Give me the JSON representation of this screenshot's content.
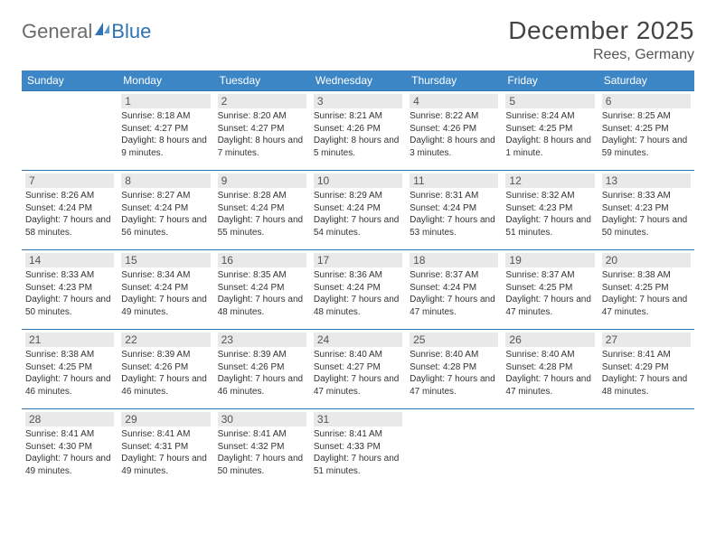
{
  "logo": {
    "text1": "General",
    "text2": "Blue"
  },
  "title": "December 2025",
  "location": "Rees, Germany",
  "colors": {
    "header_bg": "#3d86c6",
    "border": "#2f73b5",
    "daynum_bg": "#e9e9e9",
    "text": "#333333",
    "logo_gray": "#6b6b6b",
    "logo_blue": "#2f73b5"
  },
  "weekdays": [
    "Sunday",
    "Monday",
    "Tuesday",
    "Wednesday",
    "Thursday",
    "Friday",
    "Saturday"
  ],
  "days": {
    "1": {
      "sunrise": "8:18 AM",
      "sunset": "4:27 PM",
      "daylight": "8 hours and 9 minutes."
    },
    "2": {
      "sunrise": "8:20 AM",
      "sunset": "4:27 PM",
      "daylight": "8 hours and 7 minutes."
    },
    "3": {
      "sunrise": "8:21 AM",
      "sunset": "4:26 PM",
      "daylight": "8 hours and 5 minutes."
    },
    "4": {
      "sunrise": "8:22 AM",
      "sunset": "4:26 PM",
      "daylight": "8 hours and 3 minutes."
    },
    "5": {
      "sunrise": "8:24 AM",
      "sunset": "4:25 PM",
      "daylight": "8 hours and 1 minute."
    },
    "6": {
      "sunrise": "8:25 AM",
      "sunset": "4:25 PM",
      "daylight": "7 hours and 59 minutes."
    },
    "7": {
      "sunrise": "8:26 AM",
      "sunset": "4:24 PM",
      "daylight": "7 hours and 58 minutes."
    },
    "8": {
      "sunrise": "8:27 AM",
      "sunset": "4:24 PM",
      "daylight": "7 hours and 56 minutes."
    },
    "9": {
      "sunrise": "8:28 AM",
      "sunset": "4:24 PM",
      "daylight": "7 hours and 55 minutes."
    },
    "10": {
      "sunrise": "8:29 AM",
      "sunset": "4:24 PM",
      "daylight": "7 hours and 54 minutes."
    },
    "11": {
      "sunrise": "8:31 AM",
      "sunset": "4:24 PM",
      "daylight": "7 hours and 53 minutes."
    },
    "12": {
      "sunrise": "8:32 AM",
      "sunset": "4:23 PM",
      "daylight": "7 hours and 51 minutes."
    },
    "13": {
      "sunrise": "8:33 AM",
      "sunset": "4:23 PM",
      "daylight": "7 hours and 50 minutes."
    },
    "14": {
      "sunrise": "8:33 AM",
      "sunset": "4:23 PM",
      "daylight": "7 hours and 50 minutes."
    },
    "15": {
      "sunrise": "8:34 AM",
      "sunset": "4:24 PM",
      "daylight": "7 hours and 49 minutes."
    },
    "16": {
      "sunrise": "8:35 AM",
      "sunset": "4:24 PM",
      "daylight": "7 hours and 48 minutes."
    },
    "17": {
      "sunrise": "8:36 AM",
      "sunset": "4:24 PM",
      "daylight": "7 hours and 48 minutes."
    },
    "18": {
      "sunrise": "8:37 AM",
      "sunset": "4:24 PM",
      "daylight": "7 hours and 47 minutes."
    },
    "19": {
      "sunrise": "8:37 AM",
      "sunset": "4:25 PM",
      "daylight": "7 hours and 47 minutes."
    },
    "20": {
      "sunrise": "8:38 AM",
      "sunset": "4:25 PM",
      "daylight": "7 hours and 47 minutes."
    },
    "21": {
      "sunrise": "8:38 AM",
      "sunset": "4:25 PM",
      "daylight": "7 hours and 46 minutes."
    },
    "22": {
      "sunrise": "8:39 AM",
      "sunset": "4:26 PM",
      "daylight": "7 hours and 46 minutes."
    },
    "23": {
      "sunrise": "8:39 AM",
      "sunset": "4:26 PM",
      "daylight": "7 hours and 46 minutes."
    },
    "24": {
      "sunrise": "8:40 AM",
      "sunset": "4:27 PM",
      "daylight": "7 hours and 47 minutes."
    },
    "25": {
      "sunrise": "8:40 AM",
      "sunset": "4:28 PM",
      "daylight": "7 hours and 47 minutes."
    },
    "26": {
      "sunrise": "8:40 AM",
      "sunset": "4:28 PM",
      "daylight": "7 hours and 47 minutes."
    },
    "27": {
      "sunrise": "8:41 AM",
      "sunset": "4:29 PM",
      "daylight": "7 hours and 48 minutes."
    },
    "28": {
      "sunrise": "8:41 AM",
      "sunset": "4:30 PM",
      "daylight": "7 hours and 49 minutes."
    },
    "29": {
      "sunrise": "8:41 AM",
      "sunset": "4:31 PM",
      "daylight": "7 hours and 49 minutes."
    },
    "30": {
      "sunrise": "8:41 AM",
      "sunset": "4:32 PM",
      "daylight": "7 hours and 50 minutes."
    },
    "31": {
      "sunrise": "8:41 AM",
      "sunset": "4:33 PM",
      "daylight": "7 hours and 51 minutes."
    }
  },
  "labels": {
    "sunrise": "Sunrise: ",
    "sunset": "Sunset: ",
    "daylight": "Daylight: "
  },
  "layout": [
    [
      null,
      1,
      2,
      3,
      4,
      5,
      6
    ],
    [
      7,
      8,
      9,
      10,
      11,
      12,
      13
    ],
    [
      14,
      15,
      16,
      17,
      18,
      19,
      20
    ],
    [
      21,
      22,
      23,
      24,
      25,
      26,
      27
    ],
    [
      28,
      29,
      30,
      31,
      null,
      null,
      null
    ]
  ]
}
